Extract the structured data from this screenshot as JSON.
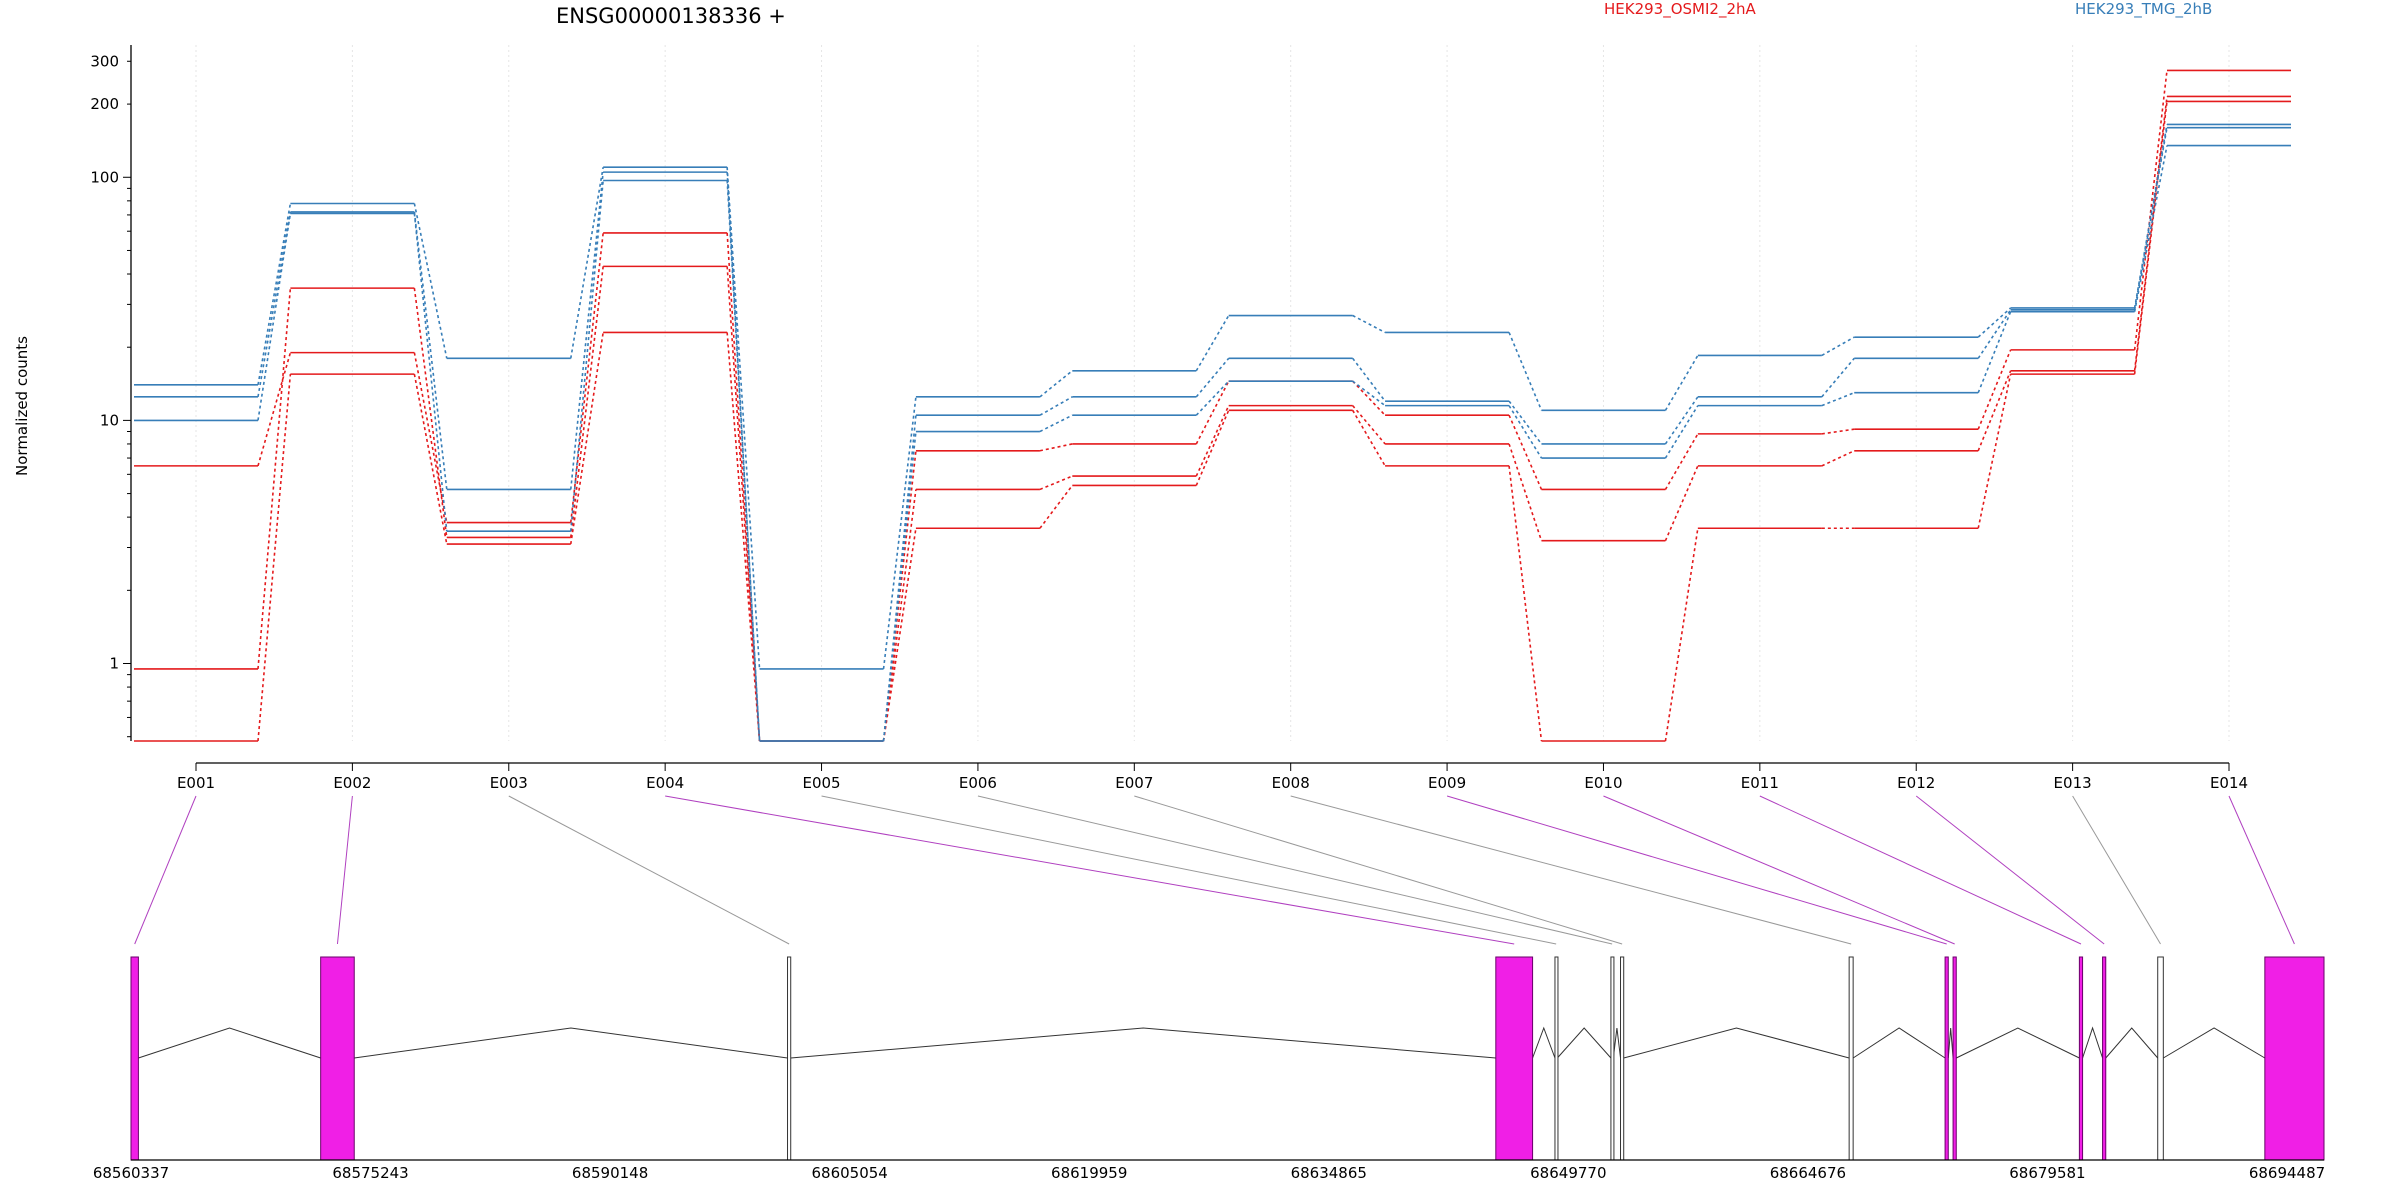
{
  "chart_data": {
    "type": "line",
    "title": "ENSG00000138336 +",
    "ylabel": "Normalized counts",
    "y_scale": "log",
    "ylim": [
      0.48,
      350
    ],
    "y_ticks": [
      1,
      10,
      100,
      200,
      300
    ],
    "grid": "vertical gridlines at each exon",
    "legend_placement": "top-right",
    "categories": [
      "E001",
      "E002",
      "E003",
      "E004",
      "E005",
      "E006",
      "E007",
      "E008",
      "E009",
      "E010",
      "E011",
      "E012",
      "E013",
      "E014"
    ],
    "series": [
      {
        "name": "HEK293_OSMI2_2hA",
        "color": "#e41a1c",
        "values": [
          6.5,
          19,
          3.8,
          59,
          0.48,
          7.5,
          8.0,
          14.5,
          10.5,
          5.2,
          8.8,
          9.2,
          19.5,
          275
        ]
      },
      {
        "name": "",
        "color": "#e41a1c",
        "values": [
          0.95,
          35,
          3.3,
          43,
          0.48,
          5.2,
          5.9,
          11.5,
          8.0,
          3.2,
          6.5,
          7.5,
          16,
          215
        ]
      },
      {
        "name": "",
        "color": "#e41a1c",
        "values": [
          0.48,
          15.5,
          3.1,
          23,
          0.48,
          3.6,
          5.4,
          11,
          6.5,
          0.48,
          3.6,
          3.6,
          15.5,
          205
        ]
      },
      {
        "name": "HEK293_TMG_2hB",
        "color": "#377eb8",
        "values": [
          14,
          78,
          18,
          110,
          0.95,
          12.5,
          16,
          27,
          23,
          11,
          18.5,
          22,
          29,
          165
        ]
      },
      {
        "name": "",
        "color": "#377eb8",
        "values": [
          12.5,
          72,
          5.2,
          105,
          0.48,
          10.5,
          12.5,
          18,
          12,
          8,
          12.5,
          18,
          28.5,
          160
        ]
      },
      {
        "name": "",
        "color": "#377eb8",
        "values": [
          10,
          71,
          3.5,
          97,
          0.48,
          9,
          10.5,
          14.5,
          11.5,
          7,
          11.5,
          13,
          28,
          135
        ]
      }
    ],
    "genomic_axis_ticks": [
      "68560337",
      "68575243",
      "68590148",
      "68605054",
      "68619959",
      "68634865",
      "68649770",
      "68664676",
      "68679581",
      "68694487"
    ],
    "gene_model": {
      "start": 68560337,
      "end": 68697500,
      "exons": [
        {
          "id": "E001",
          "start": 68560337,
          "end": 68560800,
          "tested": true
        },
        {
          "id": "E002",
          "start": 68572200,
          "end": 68574300,
          "tested": true
        },
        {
          "id": "E003",
          "start": 68601400,
          "end": 68601600,
          "tested": false
        },
        {
          "id": "E004",
          "start": 68645700,
          "end": 68648000,
          "tested": true
        },
        {
          "id": "E005",
          "start": 68649400,
          "end": 68649550,
          "tested": false
        },
        {
          "id": "E006",
          "start": 68652900,
          "end": 68653050,
          "tested": false
        },
        {
          "id": "E007",
          "start": 68653500,
          "end": 68653700,
          "tested": false
        },
        {
          "id": "E008",
          "start": 68667800,
          "end": 68668050,
          "tested": false
        },
        {
          "id": "E009",
          "start": 68673800,
          "end": 68674000,
          "tested": true
        },
        {
          "id": "E010",
          "start": 68674300,
          "end": 68674500,
          "tested": true
        },
        {
          "id": "E011",
          "start": 68682200,
          "end": 68682400,
          "tested": true
        },
        {
          "id": "E012",
          "start": 68683650,
          "end": 68683850,
          "tested": true
        },
        {
          "id": "E013",
          "start": 68687100,
          "end": 68687450,
          "tested": false
        },
        {
          "id": "E014",
          "start": 68693800,
          "end": 68697500,
          "tested": true
        }
      ],
      "tested_color": "#f01fe6",
      "untested_color": "#ffffff",
      "connector_tested_color": "#b040c0",
      "connector_untested_color": "#999999"
    }
  }
}
